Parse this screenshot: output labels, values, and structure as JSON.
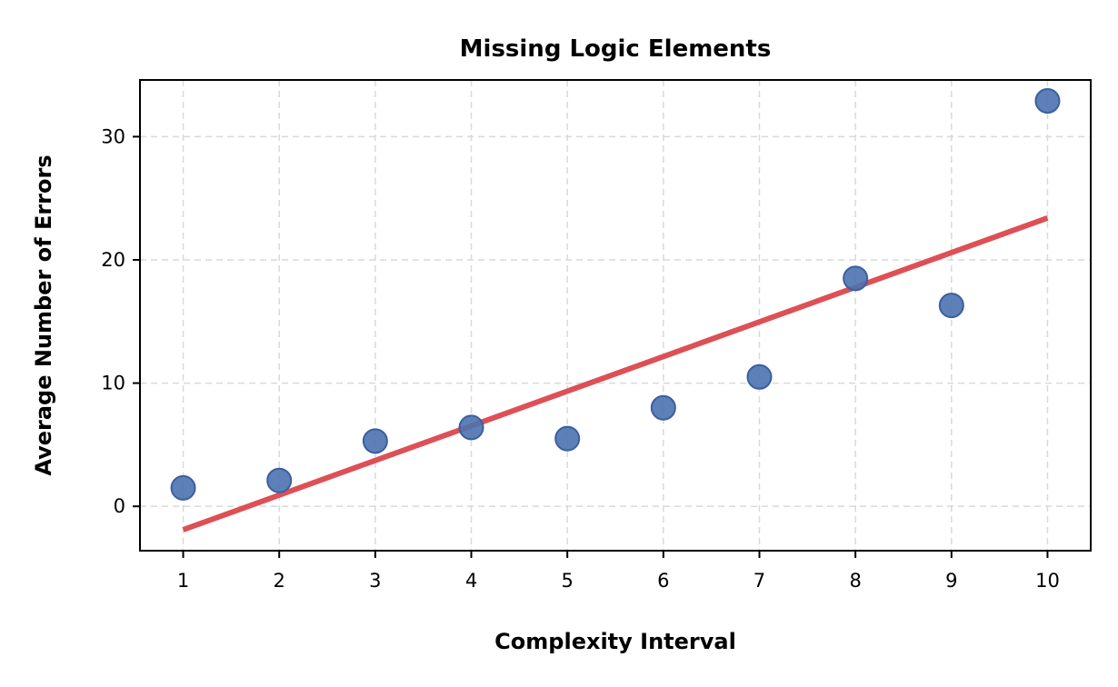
{
  "chart_data": {
    "type": "scatter",
    "title": "Missing Logic Elements",
    "xlabel": "Complexity Interval",
    "ylabel": "Average Number of Errors",
    "xlim": [
      0.55,
      10.45
    ],
    "ylim": [
      -3.6,
      34.6
    ],
    "x_ticks": [
      1,
      2,
      3,
      4,
      5,
      6,
      7,
      8,
      9,
      10
    ],
    "y_ticks": [
      0,
      10,
      20,
      30
    ],
    "grid": true,
    "legend": "none",
    "series": [
      {
        "type": "scatter",
        "color": "#4c72b0",
        "x": [
          1,
          2,
          3,
          4,
          5,
          6,
          7,
          8,
          9,
          10
        ],
        "y": [
          1.5,
          2.1,
          5.3,
          6.4,
          5.5,
          8.0,
          10.5,
          18.5,
          16.3,
          32.9
        ]
      },
      {
        "type": "line",
        "color": "#dd5055",
        "x": [
          1,
          10
        ],
        "y": [
          -1.9,
          23.4
        ]
      }
    ]
  }
}
